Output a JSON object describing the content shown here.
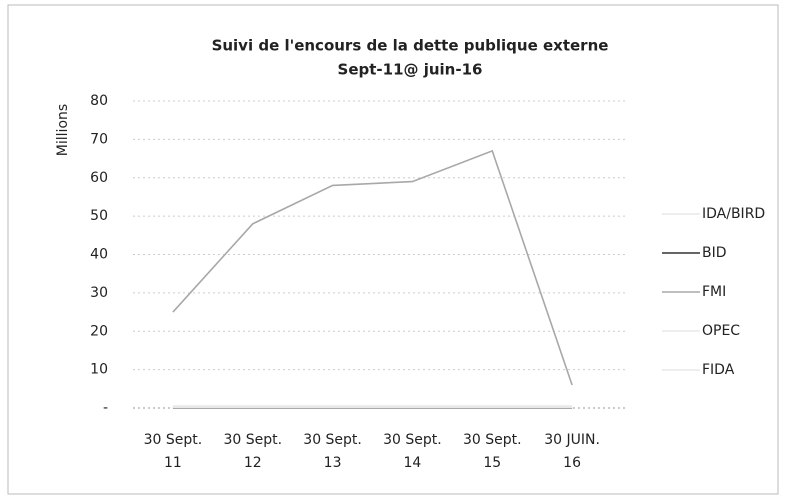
{
  "chart_data": {
    "type": "line",
    "title": "Suivi de l'encours de la dette publique externe",
    "subtitle": "Sept-11@ juin-16",
    "y_label": "Millions",
    "categories": [
      [
        "30 Sept.",
        "11"
      ],
      [
        "30 Sept.",
        "12"
      ],
      [
        "30 Sept.",
        "13"
      ],
      [
        "30 Sept.",
        "14"
      ],
      [
        "30 Sept.",
        "15"
      ],
      [
        "30 JUIN.",
        "16"
      ]
    ],
    "series": [
      {
        "name": "IDA/BIRD",
        "color": "#e8e8e8",
        "values": [
          0.5,
          0.5,
          0.5,
          0.5,
          0.5,
          0.5
        ]
      },
      {
        "name": "BID",
        "color": "#333333",
        "values": [
          0,
          0,
          0,
          0,
          0,
          0
        ]
      },
      {
        "name": "FMI",
        "color": "#a8a8a8",
        "values": [
          25,
          48,
          58,
          59,
          67,
          6
        ]
      },
      {
        "name": "OPEC",
        "color": "#e8e8e8",
        "values": [
          0.2,
          0.2,
          0.2,
          0.2,
          0.2,
          0.2
        ]
      },
      {
        "name": "FIDA",
        "color": "#e8e8e8",
        "values": [
          0.1,
          0.1,
          0.1,
          0.1,
          0.1,
          0.1
        ]
      }
    ],
    "ylim": [
      0,
      80
    ],
    "yticks": [
      {
        "value": 0,
        "label": "-"
      },
      10,
      20,
      30,
      40,
      50,
      60,
      70,
      80
    ],
    "grid": true,
    "legend": "right"
  }
}
